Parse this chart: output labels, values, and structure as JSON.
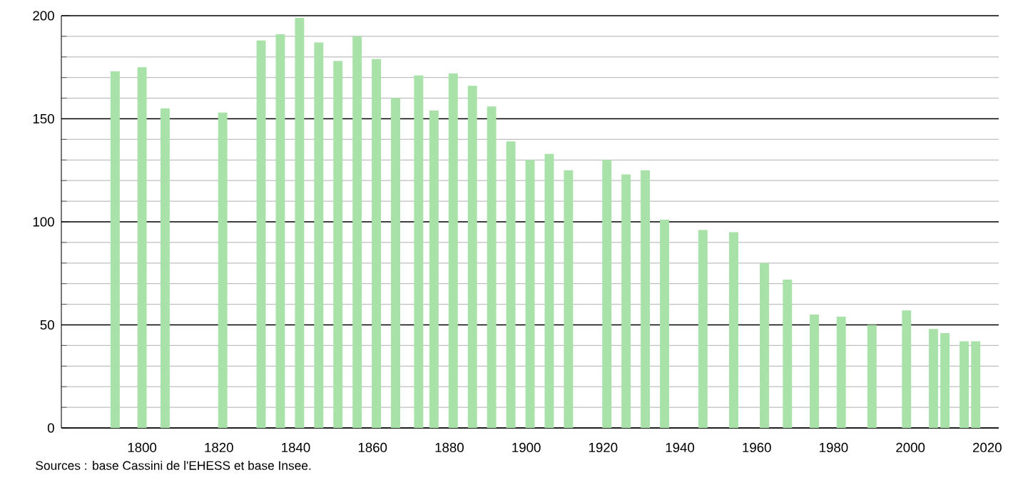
{
  "chart_data": {
    "type": "bar",
    "x": [
      1793,
      1800,
      1806,
      1821,
      1831,
      1836,
      1841,
      1846,
      1851,
      1856,
      1861,
      1866,
      1872,
      1876,
      1881,
      1886,
      1891,
      1896,
      1901,
      1906,
      1911,
      1921,
      1926,
      1931,
      1936,
      1946,
      1954,
      1962,
      1968,
      1975,
      1982,
      1990,
      1999,
      2006,
      2009,
      2014,
      2017
    ],
    "values": [
      173,
      175,
      155,
      153,
      188,
      191,
      199,
      187,
      178,
      190,
      179,
      160,
      171,
      154,
      172,
      166,
      156,
      139,
      130,
      133,
      125,
      130,
      123,
      125,
      101,
      96,
      95,
      80,
      72,
      55,
      54,
      50,
      57,
      48,
      46,
      42,
      42
    ],
    "color": "#a8e2a8",
    "xlim": [
      1779,
      2023
    ],
    "ylim": [
      0,
      200
    ],
    "xticks": [
      1800,
      1820,
      1840,
      1860,
      1880,
      1900,
      1920,
      1940,
      1960,
      1980,
      2000,
      2020
    ],
    "yticks": [
      0,
      50,
      100,
      150,
      200
    ],
    "grid": "y",
    "annotations": [
      "Sources : base Cassini de l'EHESS et base Insee."
    ]
  }
}
